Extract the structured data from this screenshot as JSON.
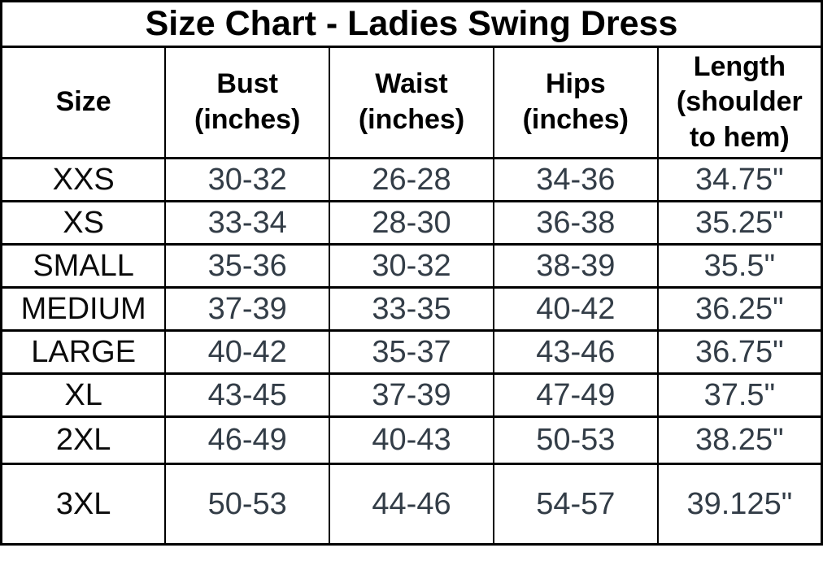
{
  "colors": {
    "background": "#ffffff",
    "border": "#000000",
    "title_text": "#000000",
    "header_text": "#000000",
    "size_label_text": "#0b0b0b",
    "value_text": "#333d47"
  },
  "chart_data": {
    "type": "table",
    "title": "Size Chart - Ladies Swing Dress",
    "columns": [
      "Size",
      "Bust (inches)",
      "Waist (inches)",
      "Hips (inches)",
      "Length (shoulder to hem)"
    ],
    "rows": [
      {
        "size": "XXS",
        "bust": "30-32",
        "waist": "26-28",
        "hips": "34-36",
        "length": "34.75\""
      },
      {
        "size": "XS",
        "bust": "33-34",
        "waist": "28-30",
        "hips": "36-38",
        "length": "35.25\""
      },
      {
        "size": "SMALL",
        "bust": "35-36",
        "waist": "30-32",
        "hips": "38-39",
        "length": "35.5\""
      },
      {
        "size": "MEDIUM",
        "bust": "37-39",
        "waist": "33-35",
        "hips": "40-42",
        "length": "36.25\""
      },
      {
        "size": "LARGE",
        "bust": "40-42",
        "waist": "35-37",
        "hips": "43-46",
        "length": "36.75\""
      },
      {
        "size": "XL",
        "bust": "43-45",
        "waist": "37-39",
        "hips": "47-49",
        "length": "37.5\""
      },
      {
        "size": "2XL",
        "bust": "46-49",
        "waist": "40-43",
        "hips": "50-53",
        "length": "38.25\""
      },
      {
        "size": "3XL",
        "bust": "50-53",
        "waist": "44-46",
        "hips": "54-57",
        "length": "39.125\""
      }
    ]
  }
}
